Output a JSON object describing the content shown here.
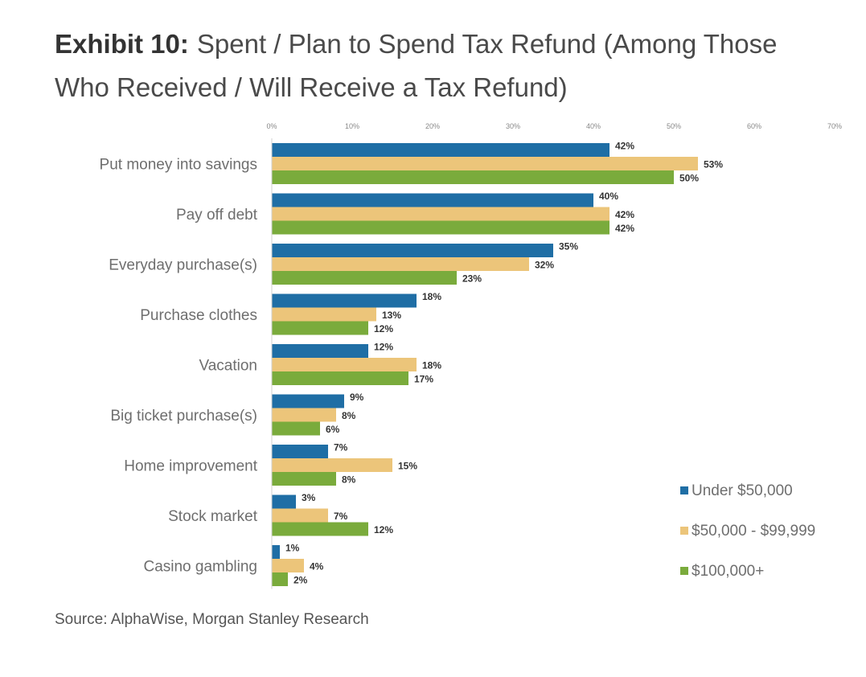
{
  "header": {
    "exhibit": "Exhibit 10:",
    "title": "Spent / Plan to Spend Tax Refund (Among Those Who Received / Will Receive a Tax Refund)"
  },
  "footer": {
    "source": "Source: AlphaWise, Morgan Stanley Research"
  },
  "chart_data": {
    "type": "bar",
    "orientation": "horizontal",
    "title": "Spent / Plan to Spend Tax Refund (Among Those Who Received / Will Receive a Tax Refund)",
    "categories": [
      "Put money into savings",
      "Pay off debt",
      "Everyday purchase(s)",
      "Purchase clothes",
      "Vacation",
      "Big ticket purchase(s)",
      "Home improvement",
      "Stock market",
      "Casino gambling"
    ],
    "series": [
      {
        "name": "Under $50,000",
        "color": "#1f6ea5",
        "values": [
          42,
          40,
          35,
          18,
          12,
          9,
          7,
          3,
          1
        ]
      },
      {
        "name": "$50,000 - $99,999",
        "color": "#ecc57a",
        "values": [
          53,
          42,
          32,
          13,
          18,
          8,
          15,
          7,
          4
        ]
      },
      {
        "name": "$100,000+",
        "color": "#7aab3c",
        "values": [
          50,
          42,
          23,
          12,
          17,
          6,
          8,
          12,
          2
        ]
      }
    ],
    "xlim": [
      0,
      70
    ],
    "x_ticks": [
      "0%",
      "10%",
      "20%",
      "30%",
      "40%",
      "50%",
      "60%",
      "70%"
    ],
    "value_suffix": "%",
    "grid": false,
    "legend_position": "bottom-right"
  }
}
